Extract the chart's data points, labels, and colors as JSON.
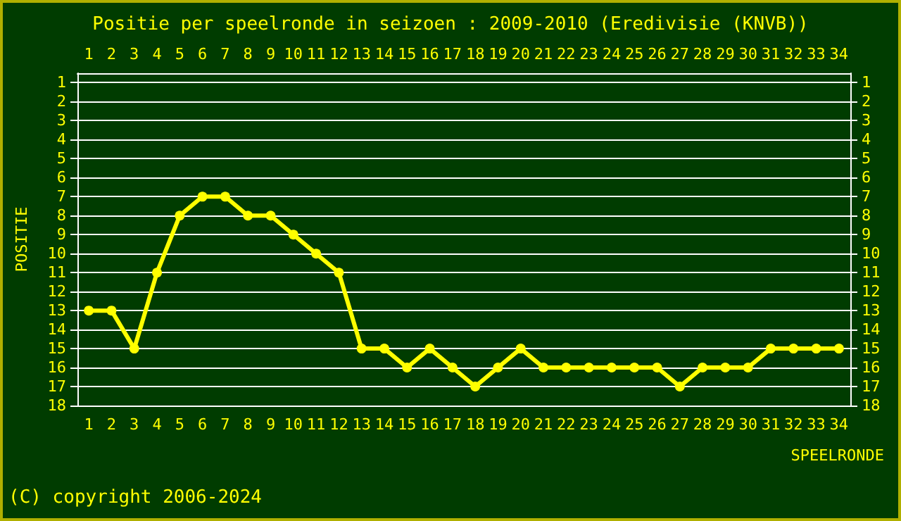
{
  "chart_data": {
    "type": "line",
    "title": "Positie per speelronde in seizoen : 2009-2010 (Eredivisie (KNVB))",
    "xlabel": "SPEELRONDE",
    "ylabel": "POSITIE",
    "annotations": [
      "(C) copyright 2006-2024"
    ],
    "categories": [
      "1",
      "2",
      "3",
      "4",
      "5",
      "6",
      "7",
      "8",
      "9",
      "10",
      "11",
      "12",
      "13",
      "14",
      "15",
      "16",
      "17",
      "18",
      "19",
      "20",
      "21",
      "22",
      "23",
      "24",
      "25",
      "26",
      "27",
      "28",
      "29",
      "30",
      "31",
      "32",
      "33",
      "34"
    ],
    "series": [
      {
        "color": "#ffff00",
        "values": [
          13,
          13,
          15,
          11,
          8,
          7,
          7,
          8,
          8,
          9,
          10,
          11,
          15,
          15,
          16,
          15,
          16,
          17,
          16,
          15,
          16,
          16,
          16,
          16,
          16,
          16,
          17,
          16,
          16,
          16,
          15,
          15,
          15,
          15
        ]
      }
    ],
    "ylim": [
      18,
      0.5
    ],
    "yticks": [
      1,
      2,
      3,
      4,
      5,
      6,
      7,
      8,
      9,
      10,
      11,
      12,
      13,
      14,
      15,
      16,
      17,
      18
    ],
    "y2lim": [
      18,
      0.5
    ],
    "y2ticks": [
      1,
      2,
      3,
      4,
      5,
      6,
      7,
      8,
      9,
      10,
      11,
      12,
      13,
      14,
      15,
      16,
      17,
      18
    ],
    "grid": "y",
    "marker": "circle",
    "line_style": "solid"
  }
}
